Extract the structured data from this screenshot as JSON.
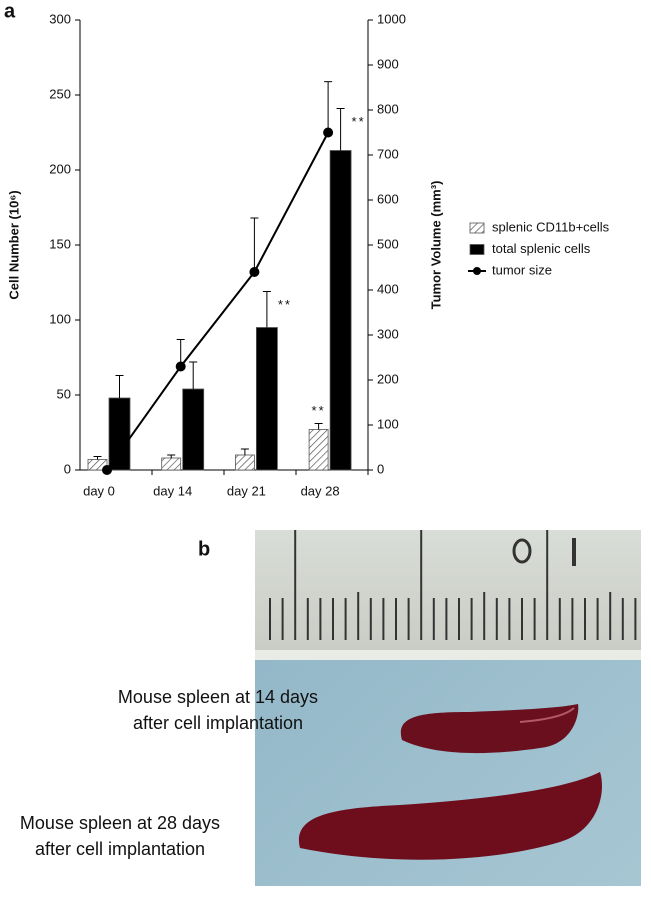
{
  "chart_data": {
    "type": "bar",
    "panel_label": "a",
    "categories": [
      "day 0",
      "day 14",
      "day 21",
      "day 28"
    ],
    "series": [
      {
        "name": "splenic CD11b+cells",
        "color": "#ffffff",
        "pattern": "hatch",
        "values": [
          7,
          8,
          10,
          27
        ],
        "errors": [
          2,
          2,
          4,
          4
        ]
      },
      {
        "name": "total splenic cells",
        "color": "#000000",
        "values": [
          48,
          54,
          95,
          213
        ],
        "errors": [
          15,
          18,
          24,
          28
        ]
      },
      {
        "name": "tumor size",
        "type": "line",
        "axis": "y2",
        "color": "#000000",
        "values": [
          0,
          230,
          440,
          750
        ],
        "errors": [
          0,
          60,
          120,
          113
        ]
      }
    ],
    "ylabel": "Cell Number (10⁶)",
    "y2label": "Tumor  Volume (mm³)",
    "ylim": [
      0,
      300
    ],
    "yticks": [
      0,
      50,
      100,
      150,
      200,
      250,
      300
    ],
    "y2lim": [
      0,
      1000
    ],
    "y2ticks": [
      0,
      100,
      200,
      300,
      400,
      500,
      600,
      700,
      800,
      900,
      1000
    ],
    "legend": "right",
    "annotations": [
      {
        "text": "**",
        "category": "day 21",
        "series": "total splenic cells"
      },
      {
        "text": "**",
        "category": "day 28",
        "series": "total splenic cells"
      },
      {
        "text": "**",
        "category": "day 28",
        "series": "splenic CD11b+cells"
      }
    ]
  },
  "photo": {
    "panel_label": "b",
    "captions": [
      [
        "Mouse spleen at 14 days",
        "after cell implantation"
      ],
      [
        "Mouse spleen at 28 days",
        "after cell implantation"
      ]
    ]
  }
}
